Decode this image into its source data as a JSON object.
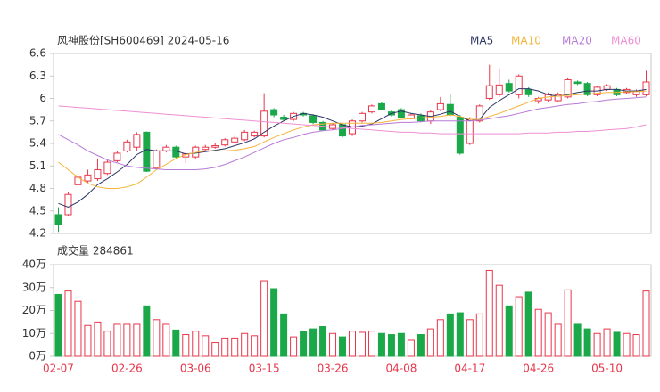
{
  "chart_data": [
    {
      "type": "candlestick",
      "title": "风神股份[SH600469] 2024-05-16",
      "up_color": "#e8364a",
      "down_color": "#1aa849",
      "open": [
        4.45,
        4.45,
        4.85,
        4.9,
        4.93,
        5.0,
        5.17,
        5.3,
        5.35,
        5.55,
        5.07,
        5.3,
        5.35,
        5.22,
        5.22,
        5.32,
        5.35,
        5.38,
        5.42,
        5.45,
        5.5,
        5.5,
        5.85,
        5.75,
        5.72,
        5.8,
        5.77,
        5.68,
        5.6,
        5.65,
        5.53,
        5.7,
        5.82,
        5.93,
        5.82,
        5.85,
        5.73,
        5.77,
        5.7,
        5.85,
        5.92,
        5.75,
        5.4,
        5.7,
        6.0,
        6.05,
        6.2,
        6.05,
        6.12,
        5.97,
        5.98,
        5.97,
        6.02,
        6.22,
        6.2,
        6.05,
        6.12,
        6.12,
        6.08,
        6.05,
        6.05
      ],
      "high": [
        4.55,
        4.75,
        5.0,
        5.05,
        5.2,
        5.18,
        5.3,
        5.45,
        5.55,
        5.56,
        5.32,
        5.38,
        5.37,
        5.28,
        5.37,
        5.38,
        5.4,
        5.47,
        5.5,
        5.58,
        5.57,
        6.07,
        5.87,
        5.78,
        5.82,
        5.82,
        5.79,
        5.7,
        5.67,
        5.67,
        5.72,
        5.82,
        5.92,
        5.95,
        5.85,
        5.87,
        5.8,
        5.8,
        5.85,
        6.02,
        6.05,
        5.78,
        5.75,
        5.92,
        6.45,
        6.4,
        6.25,
        6.32,
        6.15,
        6.02,
        6.08,
        6.08,
        6.28,
        6.24,
        6.22,
        6.17,
        6.19,
        6.14,
        6.14,
        6.12,
        6.37
      ],
      "low": [
        4.22,
        4.43,
        4.82,
        4.88,
        4.9,
        4.98,
        5.15,
        5.28,
        5.3,
        5.02,
        5.05,
        5.28,
        5.2,
        5.14,
        5.2,
        5.3,
        5.33,
        5.36,
        5.4,
        5.43,
        5.48,
        5.48,
        5.75,
        5.7,
        5.7,
        5.76,
        5.66,
        5.57,
        5.58,
        5.48,
        5.5,
        5.68,
        5.8,
        5.84,
        5.76,
        5.74,
        5.72,
        5.68,
        5.66,
        5.83,
        5.76,
        5.25,
        5.38,
        5.68,
        5.98,
        6.02,
        6.08,
        6.0,
        6.02,
        5.93,
        5.95,
        5.95,
        6.0,
        6.18,
        6.03,
        6.03,
        6.1,
        6.03,
        6.06,
        6.02,
        6.03
      ],
      "close": [
        4.32,
        4.72,
        4.95,
        4.98,
        5.05,
        5.15,
        5.27,
        5.42,
        5.52,
        5.03,
        5.3,
        5.35,
        5.22,
        5.26,
        5.35,
        5.35,
        5.37,
        5.45,
        5.47,
        5.55,
        5.55,
        5.83,
        5.78,
        5.72,
        5.8,
        5.78,
        5.68,
        5.58,
        5.65,
        5.5,
        5.7,
        5.8,
        5.9,
        5.85,
        5.78,
        5.75,
        5.78,
        5.7,
        5.82,
        5.93,
        5.78,
        5.27,
        5.72,
        5.9,
        6.17,
        6.18,
        6.1,
        6.3,
        6.05,
        6.0,
        6.05,
        6.05,
        6.25,
        6.2,
        6.05,
        6.15,
        6.17,
        6.05,
        6.12,
        6.1,
        6.22
      ],
      "series": [
        {
          "name": "MA5",
          "color": "#2b3566",
          "values": [
            4.6,
            4.55,
            4.62,
            4.72,
            4.85,
            4.93,
            5.02,
            5.12,
            5.25,
            5.32,
            5.3,
            5.3,
            5.3,
            5.26,
            5.27,
            5.29,
            5.31,
            5.33,
            5.37,
            5.41,
            5.46,
            5.55,
            5.63,
            5.7,
            5.76,
            5.8,
            5.78,
            5.75,
            5.7,
            5.65,
            5.62,
            5.63,
            5.66,
            5.73,
            5.8,
            5.83,
            5.8,
            5.78,
            5.76,
            5.79,
            5.83,
            5.76,
            5.7,
            5.72,
            5.88,
            5.97,
            6.05,
            6.13,
            6.13,
            6.1,
            6.05,
            6.03,
            6.05,
            6.08,
            6.1,
            6.1,
            6.12,
            6.12,
            6.1,
            6.1,
            6.12
          ]
        },
        {
          "name": "MA10",
          "color": "#f5b53a",
          "values": [
            5.15,
            5.05,
            4.95,
            4.87,
            4.82,
            4.8,
            4.8,
            4.82,
            4.86,
            4.95,
            5.05,
            5.12,
            5.2,
            5.25,
            5.28,
            5.3,
            5.3,
            5.3,
            5.31,
            5.33,
            5.36,
            5.42,
            5.48,
            5.53,
            5.58,
            5.62,
            5.65,
            5.66,
            5.67,
            5.67,
            5.67,
            5.67,
            5.67,
            5.68,
            5.7,
            5.72,
            5.73,
            5.74,
            5.75,
            5.76,
            5.78,
            5.76,
            5.72,
            5.72,
            5.76,
            5.8,
            5.85,
            5.9,
            5.95,
            6.0,
            6.02,
            6.03,
            6.04,
            6.05,
            6.06,
            6.07,
            6.08,
            6.08,
            6.09,
            6.09,
            6.1
          ]
        },
        {
          "name": "MA20",
          "color": "#b77ad6",
          "values": [
            5.52,
            5.45,
            5.38,
            5.3,
            5.24,
            5.18,
            5.14,
            5.1,
            5.08,
            5.07,
            5.06,
            5.05,
            5.05,
            5.05,
            5.05,
            5.06,
            5.08,
            5.12,
            5.17,
            5.22,
            5.28,
            5.34,
            5.4,
            5.45,
            5.48,
            5.52,
            5.55,
            5.57,
            5.58,
            5.6,
            5.62,
            5.64,
            5.65,
            5.66,
            5.67,
            5.68,
            5.68,
            5.69,
            5.7,
            5.7,
            5.7,
            5.7,
            5.7,
            5.71,
            5.73,
            5.75,
            5.77,
            5.8,
            5.83,
            5.86,
            5.88,
            5.9,
            5.92,
            5.93,
            5.95,
            5.96,
            5.98,
            5.99,
            6.0,
            6.01,
            6.02
          ]
        },
        {
          "name": "MA60",
          "color": "#ee8fd4",
          "values": [
            5.9,
            5.89,
            5.88,
            5.87,
            5.86,
            5.85,
            5.84,
            5.83,
            5.82,
            5.81,
            5.8,
            5.79,
            5.78,
            5.77,
            5.76,
            5.75,
            5.74,
            5.73,
            5.72,
            5.71,
            5.7,
            5.69,
            5.68,
            5.67,
            5.66,
            5.65,
            5.64,
            5.63,
            5.62,
            5.61,
            5.6,
            5.59,
            5.58,
            5.57,
            5.56,
            5.55,
            5.55,
            5.54,
            5.54,
            5.53,
            5.53,
            5.53,
            5.53,
            5.53,
            5.53,
            5.53,
            5.53,
            5.53,
            5.54,
            5.54,
            5.54,
            5.55,
            5.55,
            5.56,
            5.56,
            5.57,
            5.58,
            5.59,
            5.6,
            5.62,
            5.65
          ]
        }
      ],
      "ylim": [
        4.2,
        6.6
      ],
      "yticks": [
        4.2,
        4.5,
        4.8,
        5.1,
        5.4,
        5.7,
        6,
        6.3,
        6.6
      ]
    },
    {
      "type": "bar",
      "title": "成交量 284861",
      "up_color": "#e8364a",
      "down_color": "#1aa849",
      "categories": [
        "02-07",
        null,
        null,
        null,
        null,
        null,
        null,
        "02-26",
        null,
        null,
        null,
        null,
        null,
        null,
        "03-06",
        null,
        null,
        null,
        null,
        null,
        null,
        "03-15",
        null,
        null,
        null,
        null,
        null,
        null,
        "03-26",
        null,
        null,
        null,
        null,
        null,
        null,
        "04-08",
        null,
        null,
        null,
        null,
        null,
        null,
        "04-17",
        null,
        null,
        null,
        null,
        null,
        null,
        "04-26",
        null,
        null,
        null,
        null,
        null,
        null,
        "05-10",
        null,
        null,
        null,
        null
      ],
      "values": [
        27,
        28.5,
        24,
        13.5,
        15,
        11,
        14,
        14,
        14,
        22,
        16,
        14,
        11.5,
        9.5,
        11,
        9,
        6,
        8,
        8,
        10,
        9,
        33,
        29.5,
        18.5,
        8.5,
        11,
        12,
        13,
        10,
        8.5,
        11,
        10.5,
        11,
        10,
        9.5,
        10,
        7,
        9.5,
        12,
        16,
        18.5,
        19,
        16,
        18.5,
        37.5,
        31,
        22,
        26,
        28,
        20.5,
        19,
        14,
        29,
        14,
        12,
        10,
        12,
        10.5,
        10,
        9.5,
        28.4861
      ],
      "ylim": [
        0,
        40
      ],
      "yticks": [
        {
          "value": 0,
          "label": "0万"
        },
        {
          "value": 10,
          "label": "10万"
        },
        {
          "value": 20,
          "label": "20万"
        },
        {
          "value": 30,
          "label": "30万"
        },
        {
          "value": 40,
          "label": "40万"
        }
      ]
    }
  ]
}
